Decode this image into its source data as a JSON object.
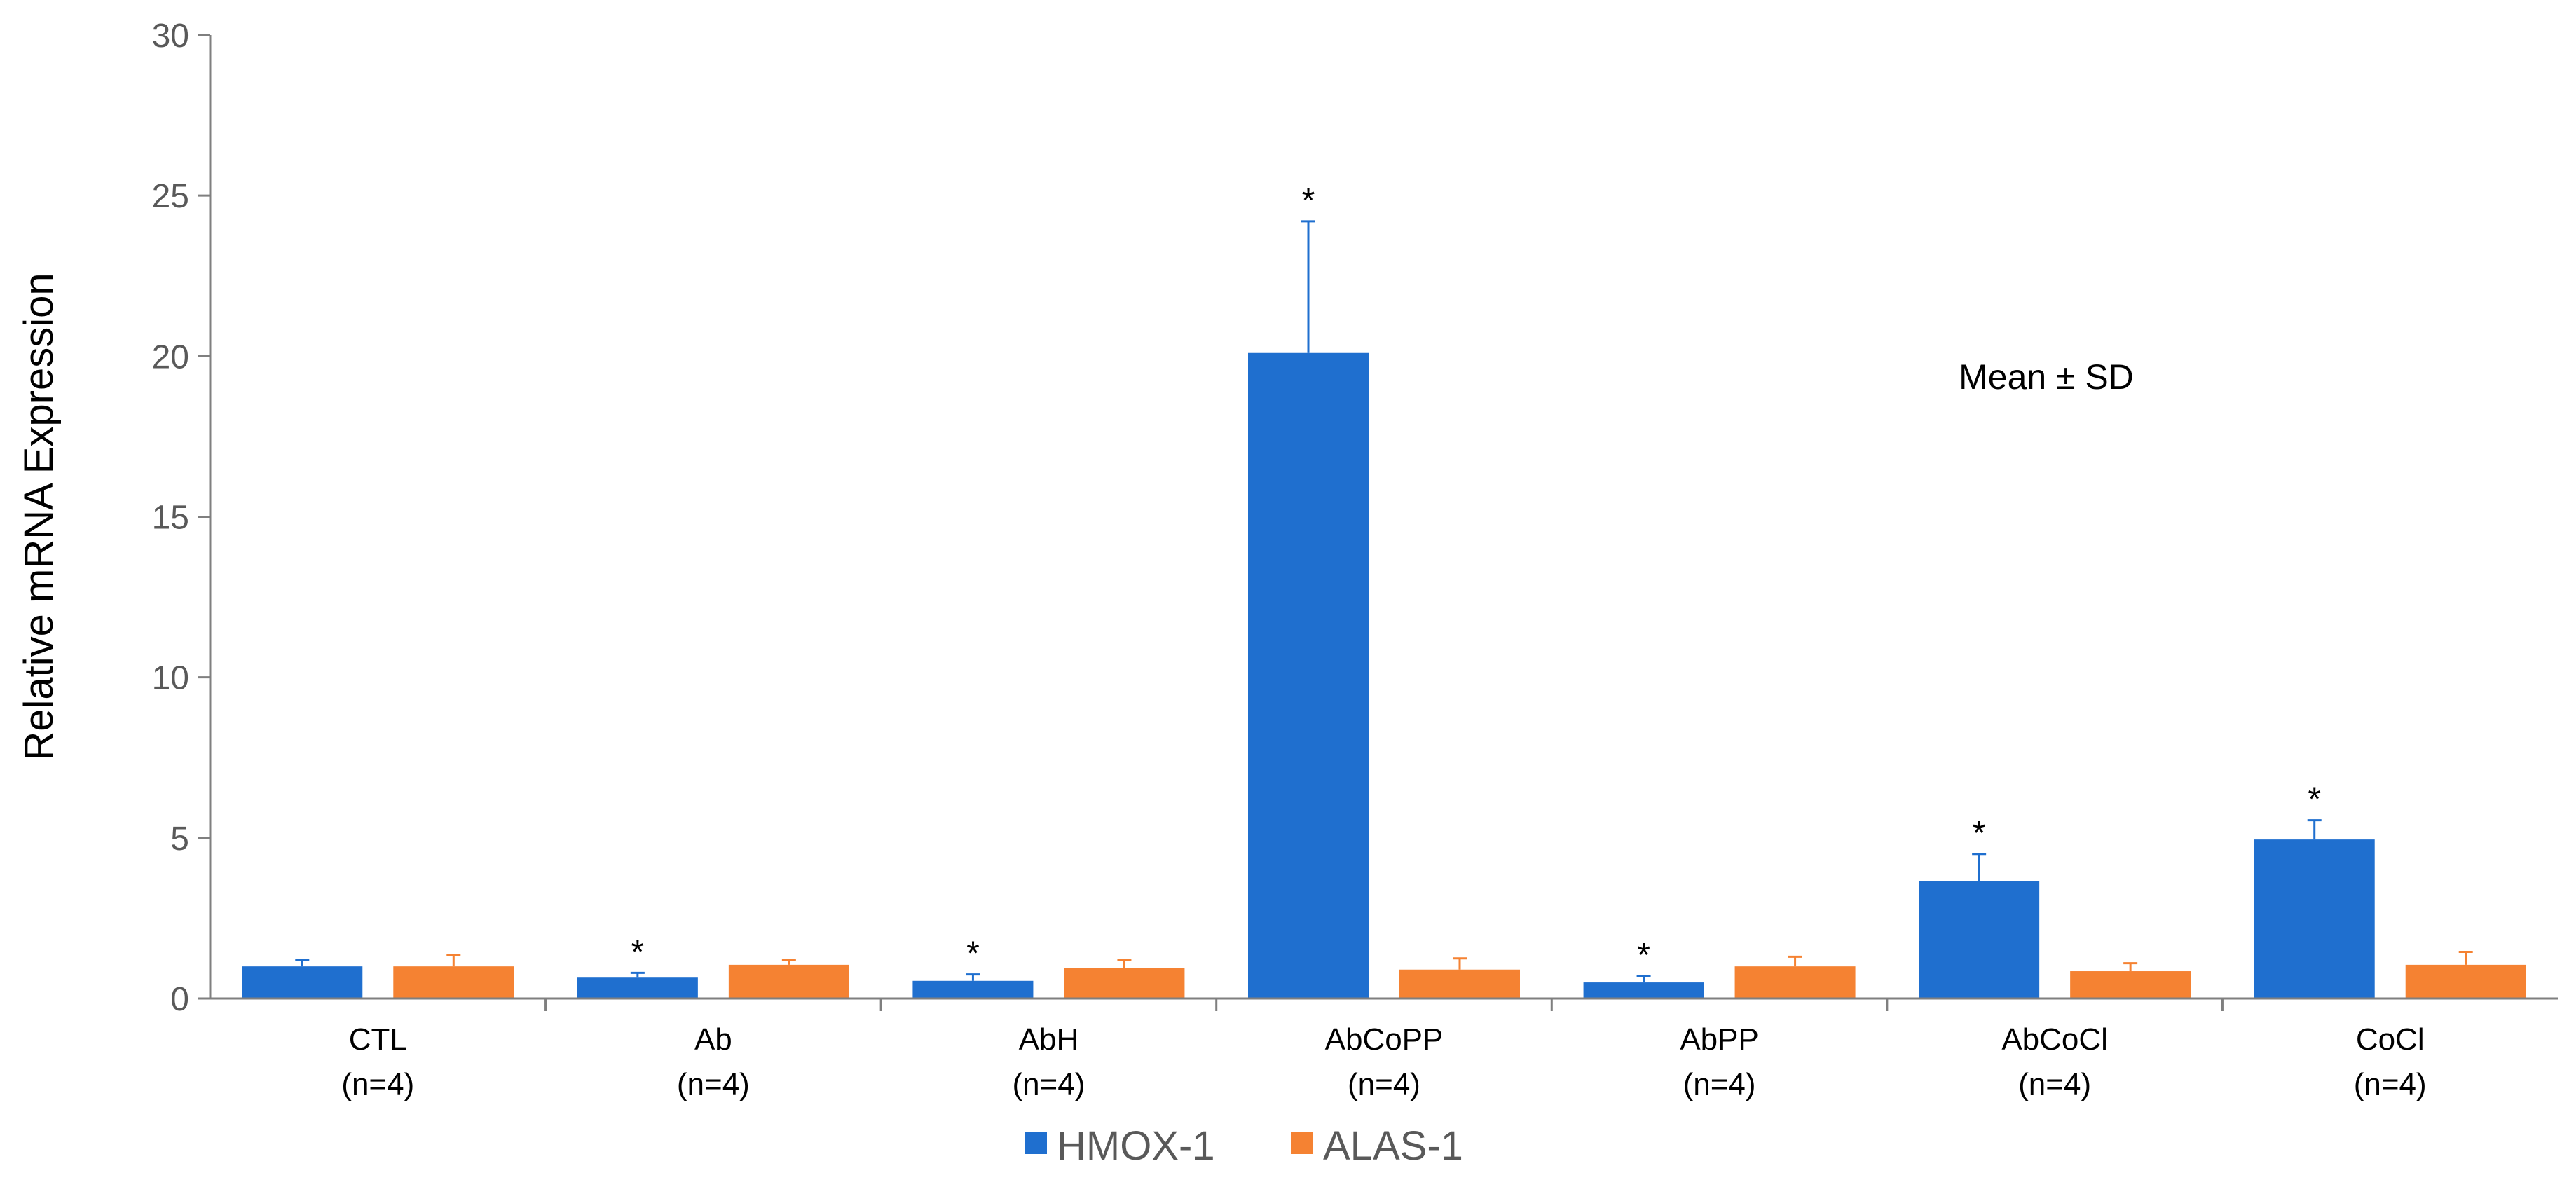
{
  "chart_data": {
    "type": "bar",
    "title": "",
    "xlabel": "",
    "ylabel": "Relative mRNA Expression",
    "ylim": [
      0,
      30
    ],
    "yticks": [
      0,
      5,
      10,
      15,
      20,
      25,
      30
    ],
    "grid": false,
    "legend_position": "bottom",
    "categories": [
      {
        "name": "CTL",
        "n": "(n=4)"
      },
      {
        "name": "Ab",
        "n": "(n=4)"
      },
      {
        "name": "AbH",
        "n": "(n=4)"
      },
      {
        "name": "AbCoPP",
        "n": "(n=4)"
      },
      {
        "name": "AbPP",
        "n": "(n=4)"
      },
      {
        "name": "AbCoCl",
        "n": "(n=4)"
      },
      {
        "name": "CoCl",
        "n": "(n=4)"
      }
    ],
    "series": [
      {
        "name": "HMOX-1",
        "color": "#1f6fcf",
        "values": [
          1.0,
          0.65,
          0.55,
          20.1,
          0.5,
          3.65,
          4.95
        ],
        "errors": [
          0.2,
          0.15,
          0.2,
          4.1,
          0.2,
          0.85,
          0.6
        ],
        "significant": [
          false,
          true,
          true,
          true,
          true,
          true,
          true
        ]
      },
      {
        "name": "ALAS-1",
        "color": "#f58232",
        "values": [
          1.0,
          1.05,
          0.95,
          0.9,
          1.0,
          0.85,
          1.05
        ],
        "errors": [
          0.35,
          0.15,
          0.25,
          0.35,
          0.3,
          0.25,
          0.4
        ],
        "significant": [
          false,
          false,
          false,
          false,
          false,
          false,
          false
        ]
      }
    ],
    "annotation": "Mean ± SD",
    "significance_marker": "*"
  }
}
